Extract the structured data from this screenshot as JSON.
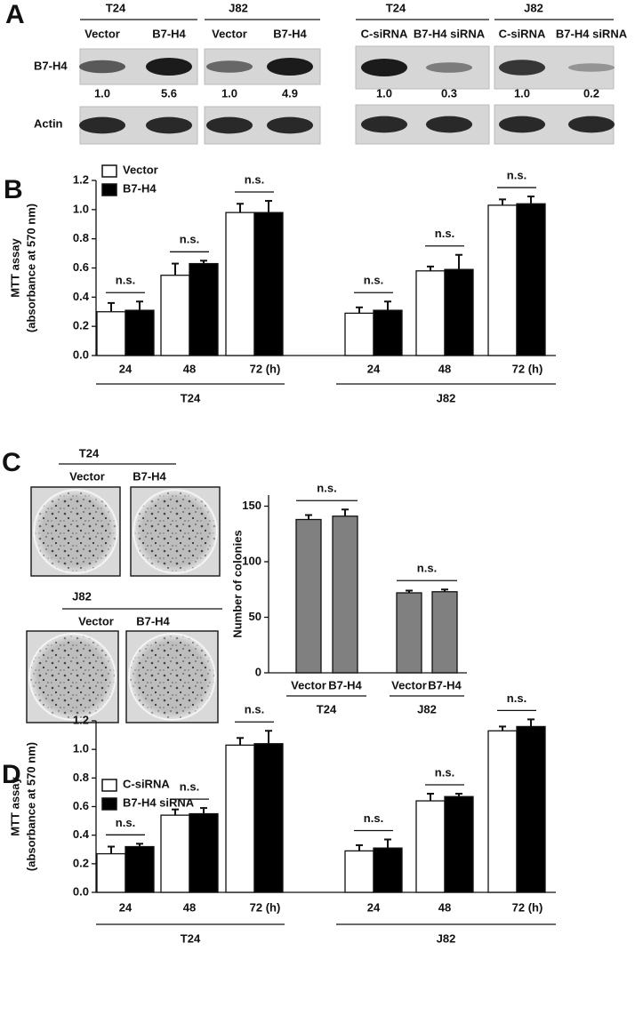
{
  "panel_labels": [
    "A",
    "B",
    "C",
    "D"
  ],
  "blot": {
    "rows": [
      "B7-H4",
      "Actin"
    ],
    "groups": [
      {
        "name": "T24",
        "lanes": [
          "Vector",
          "B7-H4"
        ],
        "quant": [
          "1.0",
          "5.6"
        ]
      },
      {
        "name": "J82",
        "lanes": [
          "Vector",
          "B7-H4"
        ],
        "quant": [
          "1.0",
          "4.9"
        ]
      },
      {
        "name": "T24",
        "lanes": [
          "C-siRNA",
          "B7-H4 siRNA"
        ],
        "quant": [
          "1.0",
          "0.3"
        ]
      },
      {
        "name": "J82",
        "lanes": [
          "C-siRNA",
          "B7-H4 siRNA"
        ],
        "quant": [
          "1.0",
          "0.2"
        ]
      }
    ]
  },
  "colony": {
    "groups": [
      {
        "name": "T24",
        "lanes": [
          "Vector",
          "B7-H4"
        ]
      },
      {
        "name": "J82",
        "lanes": [
          "Vector",
          "B7-H4"
        ]
      }
    ]
  },
  "chart_data": [
    {
      "type": "bar",
      "ylabel": "MTT assay",
      "ylabel_sub": "(absorbance at 570 nm)",
      "categories": [
        "24",
        "48",
        "72 (h)",
        "24",
        "48",
        "72 (h)"
      ],
      "groups": [
        "T24",
        "J82"
      ],
      "series": [
        {
          "name": "Vector",
          "color": "#ffffff",
          "values": [
            0.3,
            0.55,
            0.98,
            0.29,
            0.58,
            1.03
          ],
          "errors": [
            0.06,
            0.08,
            0.06,
            0.04,
            0.03,
            0.04
          ]
        },
        {
          "name": "B7-H4",
          "color": "#000000",
          "values": [
            0.31,
            0.63,
            0.98,
            0.31,
            0.59,
            1.04
          ],
          "errors": [
            0.06,
            0.02,
            0.08,
            0.06,
            0.1,
            0.05
          ]
        }
      ],
      "significance": [
        "n.s.",
        "n.s.",
        "n.s.",
        "n.s.",
        "n.s.",
        "n.s."
      ],
      "ylim": [
        0,
        1.2
      ],
      "yticks": [
        {
          "value": 0,
          "label": "0.0"
        },
        {
          "value": 0.2,
          "label": "0.2"
        },
        {
          "value": 0.4,
          "label": "0.4"
        },
        {
          "value": 0.6,
          "label": "0.6"
        },
        {
          "value": 0.8,
          "label": "0.8"
        },
        {
          "value": 1,
          "label": "1.0"
        },
        {
          "value": 1.2,
          "label": "1.2"
        }
      ]
    },
    {
      "type": "bar",
      "ylabel": "Number of colonies",
      "categories": [
        "Vector",
        "B7-H4",
        "Vector",
        "B7-H4"
      ],
      "groups": [
        "T24",
        "J82"
      ],
      "series": [
        {
          "color": "#808080",
          "values": [
            138,
            141,
            72,
            73
          ],
          "errors": [
            4,
            6,
            2,
            2
          ]
        }
      ],
      "significance": [
        "n.s.",
        "n.s."
      ],
      "ylim": [
        0,
        160
      ],
      "yticks": [
        0,
        50,
        100,
        150
      ]
    },
    {
      "type": "bar",
      "ylabel": "MTT assay",
      "ylabel_sub": "(absorbance at 570 nm)",
      "categories": [
        "24",
        "48",
        "72 (h)",
        "24",
        "48",
        "72 (h)"
      ],
      "groups": [
        "T24",
        "J82"
      ],
      "series": [
        {
          "name": "C-siRNA",
          "color": "#ffffff",
          "values": [
            0.27,
            0.54,
            1.03,
            0.29,
            0.64,
            1.13
          ],
          "errors": [
            0.05,
            0.04,
            0.05,
            0.04,
            0.05,
            0.03
          ]
        },
        {
          "name": "B7-H4 siRNA",
          "color": "#000000",
          "values": [
            0.32,
            0.55,
            1.04,
            0.31,
            0.67,
            1.16
          ],
          "errors": [
            0.02,
            0.04,
            0.09,
            0.06,
            0.02,
            0.05
          ]
        }
      ],
      "significance": [
        "n.s.",
        "n.s.",
        "n.s.",
        "n.s.",
        "n.s.",
        "n.s."
      ],
      "ylim": [
        0,
        1.2
      ],
      "yticks": [
        {
          "value": 0,
          "label": "0.0"
        },
        {
          "value": 0.2,
          "label": "0.2"
        },
        {
          "value": 0.4,
          "label": "0.4"
        },
        {
          "value": 0.6,
          "label": "0.6"
        },
        {
          "value": 0.8,
          "label": "0.8"
        },
        {
          "value": 1,
          "label": "1.0"
        },
        {
          "value": 1.2,
          "label": "1.2"
        }
      ]
    }
  ]
}
